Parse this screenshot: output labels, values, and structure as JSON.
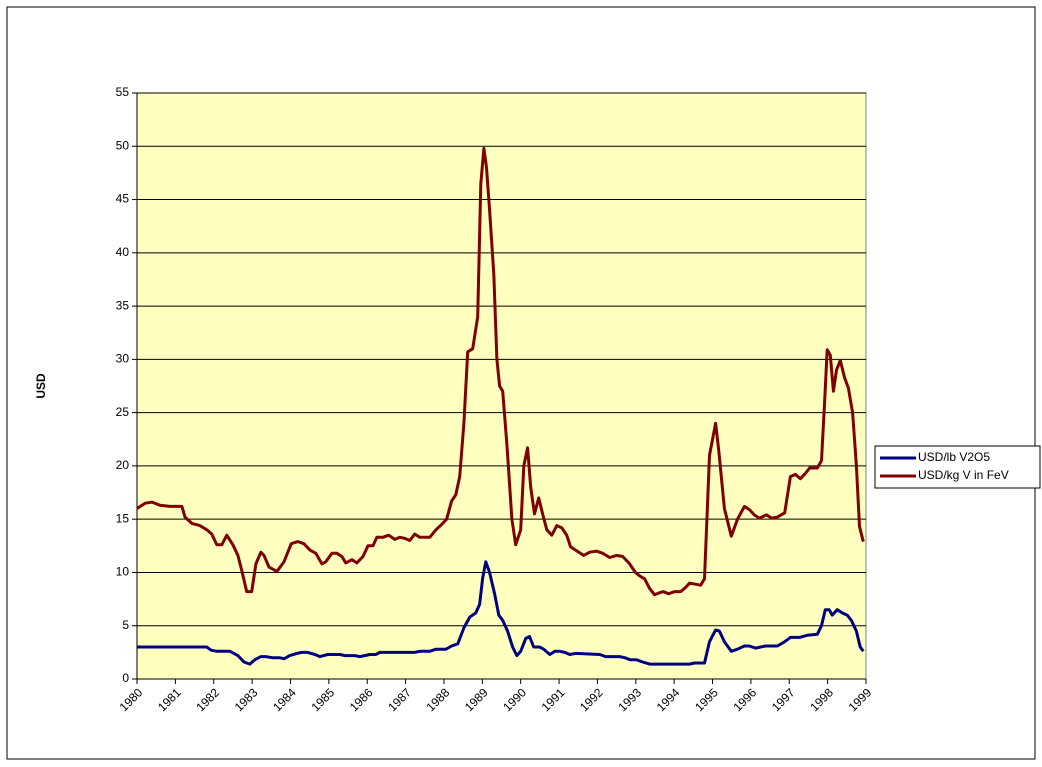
{
  "chart_data": {
    "type": "line",
    "ylabel": "USD",
    "xlim": [
      1980,
      1999
    ],
    "xticks": [
      1980,
      1981,
      1982,
      1983,
      1984,
      1985,
      1986,
      1987,
      1988,
      1989,
      1990,
      1991,
      1992,
      1993,
      1994,
      1995,
      1996,
      1997,
      1998,
      1999
    ],
    "ylim": [
      0,
      55
    ],
    "yticks": [
      0,
      5,
      10,
      15,
      20,
      25,
      30,
      35,
      40,
      45,
      50,
      55
    ],
    "grid": true,
    "legend": "right",
    "series": [
      {
        "name": "USD/lb V2O5",
        "color": "#000080",
        "x": [
          1980.0,
          1981.82,
          1981.93,
          1982.08,
          1982.42,
          1982.63,
          1982.79,
          1982.94,
          1983.07,
          1983.23,
          1983.36,
          1983.52,
          1983.72,
          1983.83,
          1983.98,
          1984.17,
          1984.3,
          1984.45,
          1984.64,
          1984.77,
          1984.97,
          1985.29,
          1985.42,
          1985.68,
          1985.81,
          1986.07,
          1986.22,
          1986.33,
          1986.85,
          1987.24,
          1987.37,
          1987.63,
          1987.79,
          1988.05,
          1988.2,
          1988.36,
          1988.52,
          1988.67,
          1988.83,
          1988.93,
          1989.01,
          1989.09,
          1989.19,
          1989.32,
          1989.43,
          1989.53,
          1989.66,
          1989.79,
          1989.9,
          1990.0,
          1990.13,
          1990.23,
          1990.34,
          1990.49,
          1990.6,
          1990.76,
          1990.89,
          1991.02,
          1991.15,
          1991.28,
          1991.43,
          1992.06,
          1992.21,
          1992.58,
          1992.71,
          1992.86,
          1993.02,
          1993.18,
          1993.36,
          1994.4,
          1994.53,
          1994.69,
          1994.79,
          1994.92,
          1995.08,
          1995.18,
          1995.31,
          1995.49,
          1995.65,
          1995.83,
          1995.96,
          1996.12,
          1996.38,
          1996.69,
          1996.88,
          1997.03,
          1997.27,
          1997.47,
          1997.73,
          1997.84,
          1997.94,
          1998.04,
          1998.12,
          1998.25,
          1998.38,
          1998.51,
          1998.62,
          1998.75,
          1998.85,
          1998.93
        ],
        "values": [
          3,
          3,
          2.7,
          2.6,
          2.6,
          2.2,
          1.6,
          1.4,
          1.8,
          2.1,
          2.1,
          2,
          2,
          1.9,
          2.2,
          2.4,
          2.5,
          2.5,
          2.3,
          2.1,
          2.3,
          2.3,
          2.2,
          2.2,
          2.1,
          2.3,
          2.3,
          2.5,
          2.5,
          2.5,
          2.6,
          2.6,
          2.8,
          2.8,
          3.1,
          3.3,
          4.8,
          5.8,
          6.2,
          7,
          9.5,
          11,
          10,
          8,
          6,
          5.5,
          4.5,
          3,
          2.2,
          2.6,
          3.8,
          4,
          3,
          3,
          2.8,
          2.3,
          2.6,
          2.6,
          2.5,
          2.3,
          2.4,
          2.3,
          2.1,
          2.1,
          2,
          1.8,
          1.8,
          1.6,
          1.4,
          1.4,
          1.5,
          1.5,
          1.5,
          3.5,
          4.6,
          4.5,
          3.5,
          2.6,
          2.8,
          3.1,
          3.1,
          2.9,
          3.1,
          3.1,
          3.5,
          3.9,
          3.9,
          4.1,
          4.2,
          5,
          6.5,
          6.5,
          6,
          6.5,
          6.2,
          6,
          5.5,
          4.5,
          3,
          2.6
        ]
      },
      {
        "name": "USD/kg V in FeV",
        "color": "#800000",
        "x": [
          1980.0,
          1980.21,
          1980.39,
          1980.6,
          1980.86,
          1981.17,
          1981.25,
          1981.43,
          1981.64,
          1981.82,
          1981.95,
          1982.08,
          1982.21,
          1982.34,
          1982.5,
          1982.63,
          1982.73,
          1982.86,
          1982.99,
          1983.1,
          1983.23,
          1983.31,
          1983.44,
          1983.65,
          1983.83,
          1984.02,
          1984.19,
          1984.35,
          1984.51,
          1984.66,
          1984.82,
          1984.92,
          1985.08,
          1985.21,
          1985.34,
          1985.44,
          1985.6,
          1985.73,
          1985.89,
          1986.02,
          1986.15,
          1986.25,
          1986.41,
          1986.56,
          1986.72,
          1986.85,
          1986.98,
          1987.11,
          1987.24,
          1987.37,
          1987.63,
          1987.79,
          1987.94,
          1988.07,
          1988.2,
          1988.31,
          1988.41,
          1988.52,
          1988.62,
          1988.75,
          1988.88,
          1988.96,
          1989.04,
          1989.11,
          1989.19,
          1989.3,
          1989.38,
          1989.45,
          1989.53,
          1989.64,
          1989.77,
          1989.87,
          1990.0,
          1990.08,
          1990.18,
          1990.26,
          1990.36,
          1990.47,
          1990.57,
          1990.68,
          1990.81,
          1990.94,
          1991.07,
          1991.2,
          1991.3,
          1991.43,
          1991.64,
          1991.8,
          1991.98,
          1992.14,
          1992.32,
          1992.5,
          1992.66,
          1992.84,
          1992.99,
          1993.13,
          1993.23,
          1993.36,
          1993.49,
          1993.62,
          1993.72,
          1993.85,
          1994.01,
          1994.17,
          1994.3,
          1994.4,
          1994.56,
          1994.69,
          1994.79,
          1994.92,
          1995.08,
          1995.16,
          1995.31,
          1995.49,
          1995.65,
          1995.83,
          1995.96,
          1996.09,
          1996.22,
          1996.41,
          1996.54,
          1996.69,
          1996.88,
          1997.03,
          1997.16,
          1997.29,
          1997.42,
          1997.53,
          1997.73,
          1997.84,
          1997.92,
          1997.99,
          1998.07,
          1998.15,
          1998.23,
          1998.33,
          1998.44,
          1998.54,
          1998.65,
          1998.75,
          1998.83,
          1998.93
        ],
        "values": [
          16,
          16.5,
          16.6,
          16.3,
          16.2,
          16.2,
          15.2,
          14.6,
          14.4,
          14,
          13.6,
          12.6,
          12.6,
          13.5,
          12.6,
          11.6,
          10.2,
          8.2,
          8.2,
          10.8,
          11.9,
          11.6,
          10.5,
          10.1,
          11,
          12.7,
          12.9,
          12.7,
          12.1,
          11.8,
          10.8,
          11,
          11.8,
          11.8,
          11.5,
          10.9,
          11.2,
          10.9,
          11.5,
          12.5,
          12.5,
          13.3,
          13.3,
          13.5,
          13.1,
          13.3,
          13.2,
          13,
          13.6,
          13.3,
          13.3,
          14,
          14.5,
          15,
          16.7,
          17.3,
          19,
          24,
          30.7,
          31,
          34,
          46.5,
          49.8,
          48,
          44,
          38,
          30,
          27.5,
          27,
          22,
          15,
          12.6,
          14,
          20,
          21.7,
          18,
          15.5,
          17,
          15.5,
          14,
          13.5,
          14.4,
          14.2,
          13.5,
          12.4,
          12.1,
          11.6,
          11.9,
          12,
          11.8,
          11.4,
          11.6,
          11.5,
          10.8,
          10,
          9.6,
          9.4,
          8.5,
          7.9,
          8.1,
          8.2,
          8,
          8.2,
          8.2,
          8.6,
          9,
          8.9,
          8.8,
          9.4,
          21,
          24,
          21.5,
          16,
          13.4,
          15,
          16.2,
          15.9,
          15.4,
          15.1,
          15.4,
          15.1,
          15.2,
          15.6,
          19,
          19.2,
          18.8,
          19.3,
          19.8,
          19.8,
          20.5,
          26,
          30.9,
          30.4,
          27,
          29,
          29.9,
          28.3,
          27.3,
          25,
          20,
          14.3,
          12.9
        ]
      }
    ]
  }
}
